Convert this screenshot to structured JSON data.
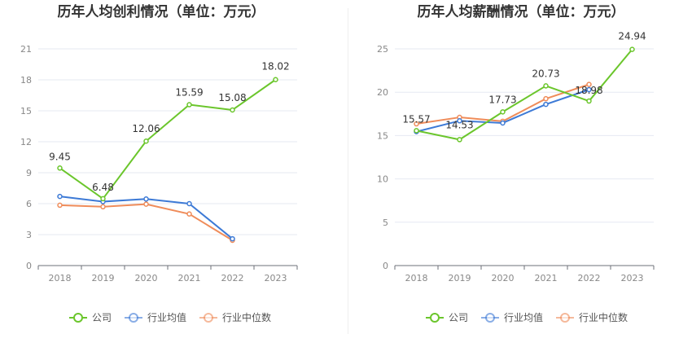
{
  "chart_data": [
    {
      "type": "line",
      "title": "历年人均创利情况（单位：万元）",
      "categories": [
        "2018",
        "2019",
        "2020",
        "2021",
        "2022",
        "2023"
      ],
      "ylim": [
        0,
        21
      ],
      "yticks": [
        0,
        3,
        6,
        9,
        12,
        15,
        18,
        21
      ],
      "grid": true,
      "legend_position": "bottom",
      "series": [
        {
          "name": "公司",
          "color": "#6bc62c",
          "values": [
            9.45,
            6.48,
            12.06,
            15.59,
            15.08,
            18.02
          ],
          "labels": [
            "9.45",
            "6.48",
            "12.06",
            "15.59",
            "15.08",
            "18.02"
          ]
        },
        {
          "name": "行业均值",
          "color": "#3d7ad6",
          "values": [
            6.7,
            6.2,
            6.45,
            6.0,
            2.6,
            null
          ]
        },
        {
          "name": "行业中位数",
          "color": "#ef8c5a",
          "values": [
            5.85,
            5.7,
            5.95,
            5.0,
            2.45,
            null
          ]
        }
      ]
    },
    {
      "type": "line",
      "title": "历年人均薪酬情况（单位：万元）",
      "categories": [
        "2018",
        "2019",
        "2020",
        "2021",
        "2022",
        "2023"
      ],
      "ylim": [
        0,
        25
      ],
      "yticks": [
        0,
        5,
        10,
        15,
        20,
        25
      ],
      "grid": true,
      "legend_position": "bottom",
      "series": [
        {
          "name": "公司",
          "color": "#6bc62c",
          "values": [
            15.57,
            14.53,
            17.73,
            20.73,
            18.98,
            24.94
          ],
          "labels": [
            "15.57",
            "14.53",
            "17.73",
            "20.73",
            "18.98",
            "24.94"
          ]
        },
        {
          "name": "行业均值",
          "color": "#3d7ad6",
          "values": [
            15.45,
            16.7,
            16.45,
            18.6,
            20.3,
            null
          ]
        },
        {
          "name": "行业中位数",
          "color": "#ef8c5a",
          "values": [
            16.35,
            17.1,
            16.65,
            19.25,
            20.9,
            null
          ]
        }
      ]
    }
  ]
}
